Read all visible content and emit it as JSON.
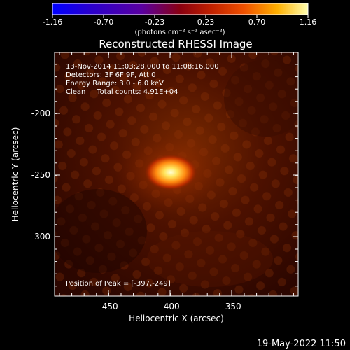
{
  "colorbar": {
    "ticks": [
      "-1.16",
      "-0.70",
      "-0.23",
      "0.23",
      "0.70",
      "1.16"
    ],
    "units": "(photons cm⁻² s⁻¹ asec⁻²)"
  },
  "plot": {
    "title": "Reconstructed RHESSI Image",
    "info": [
      "13-Nov-2014 11:03:28.000 to 11:08:16.000",
      "Detectors: 3F 6F 9F, Att 0",
      "Energy Range: 3.0 - 6.0 keV",
      "Clean     Total counts: 4.91E+04"
    ],
    "peak_label": "Position of Peak = [-397,-249]",
    "xlabel": "Heliocentric X (arcsec)",
    "ylabel": "Heliocentric Y (arcsec)",
    "xticks": [
      "-450",
      "-400",
      "-350"
    ],
    "yticks": [
      "-200",
      "-250",
      "-300"
    ]
  },
  "footer": {
    "timestamp": "19-May-2022 11:50"
  },
  "chart_data": {
    "type": "heatmap",
    "title": "Reconstructed RHESSI Image",
    "xlabel": "Heliocentric X (arcsec)",
    "ylabel": "Heliocentric Y (arcsec)",
    "xlim": [
      -495,
      -395
    ],
    "ylim": [
      -345,
      -170
    ],
    "color_range": [
      -1.16,
      1.16
    ],
    "colorbar_unit": "photons cm^-2 s^-1 asec^-2",
    "peak": {
      "x": -397,
      "y": -249
    },
    "colors": {
      "background": "#000000",
      "foreground": "#ffffff"
    }
  }
}
